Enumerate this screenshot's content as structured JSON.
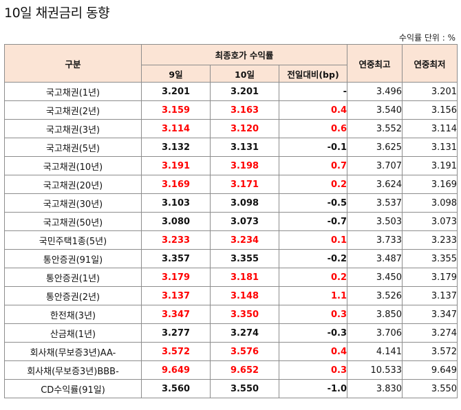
{
  "title": "10일 채권금리 동향",
  "unit_note": "수익률 단위 : %",
  "headers": {
    "category": "구분",
    "group": "최종호가 수익률",
    "day9": "9일",
    "day10": "10일",
    "change": "전일대비(bp)",
    "year_high": "연중최고",
    "year_low": "연중최저"
  },
  "colors": {
    "header_bg": "#fbe4d5",
    "rise": "#ff0000",
    "border": "#8c8c8c"
  },
  "rows": [
    {
      "name": "국고채권(1년)",
      "d9": "3.201",
      "d10": "3.201",
      "chg": "-",
      "high": "3.496",
      "low": "3.201",
      "up": false
    },
    {
      "name": "국고채권(2년)",
      "d9": "3.159",
      "d10": "3.163",
      "chg": "0.4",
      "high": "3.540",
      "low": "3.156",
      "up": true
    },
    {
      "name": "국고채권(3년)",
      "d9": "3.114",
      "d10": "3.120",
      "chg": "0.6",
      "high": "3.552",
      "low": "3.114",
      "up": true
    },
    {
      "name": "국고채권(5년)",
      "d9": "3.132",
      "d10": "3.131",
      "chg": "-0.1",
      "high": "3.625",
      "low": "3.131",
      "up": false
    },
    {
      "name": "국고채권(10년)",
      "d9": "3.191",
      "d10": "3.198",
      "chg": "0.7",
      "high": "3.707",
      "low": "3.191",
      "up": true
    },
    {
      "name": "국고채권(20년)",
      "d9": "3.169",
      "d10": "3.171",
      "chg": "0.2",
      "high": "3.624",
      "low": "3.169",
      "up": true
    },
    {
      "name": "국고채권(30년)",
      "d9": "3.103",
      "d10": "3.098",
      "chg": "-0.5",
      "high": "3.537",
      "low": "3.098",
      "up": false
    },
    {
      "name": "국고채권(50년)",
      "d9": "3.080",
      "d10": "3.073",
      "chg": "-0.7",
      "high": "3.503",
      "low": "3.073",
      "up": false
    },
    {
      "name": "국민주택1종(5년)",
      "d9": "3.233",
      "d10": "3.234",
      "chg": "0.1",
      "high": "3.733",
      "low": "3.233",
      "up": true
    },
    {
      "name": "통안증권(91일)",
      "d9": "3.357",
      "d10": "3.355",
      "chg": "-0.2",
      "high": "3.487",
      "low": "3.355",
      "up": false
    },
    {
      "name": "통안증권(1년)",
      "d9": "3.179",
      "d10": "3.181",
      "chg": "0.2",
      "high": "3.450",
      "low": "3.179",
      "up": true
    },
    {
      "name": "통안증권(2년)",
      "d9": "3.137",
      "d10": "3.148",
      "chg": "1.1",
      "high": "3.526",
      "low": "3.137",
      "up": true
    },
    {
      "name": "한전채(3년)",
      "d9": "3.347",
      "d10": "3.350",
      "chg": "0.3",
      "high": "3.850",
      "low": "3.347",
      "up": true
    },
    {
      "name": "산금채(1년)",
      "d9": "3.277",
      "d10": "3.274",
      "chg": "-0.3",
      "high": "3.706",
      "low": "3.274",
      "up": false
    },
    {
      "name": "회사채(무보증3년)AA-",
      "d9": "3.572",
      "d10": "3.576",
      "chg": "0.4",
      "high": "4.141",
      "low": "3.572",
      "up": true
    },
    {
      "name": "회사채(무보증3년)BBB-",
      "d9": "9.649",
      "d10": "9.652",
      "chg": "0.3",
      "high": "10.533",
      "low": "9.649",
      "up": true
    },
    {
      "name": "CD수익률(91일)",
      "d9": "3.560",
      "d10": "3.550",
      "chg": "-1.0",
      "high": "3.830",
      "low": "3.550",
      "up": false
    }
  ]
}
